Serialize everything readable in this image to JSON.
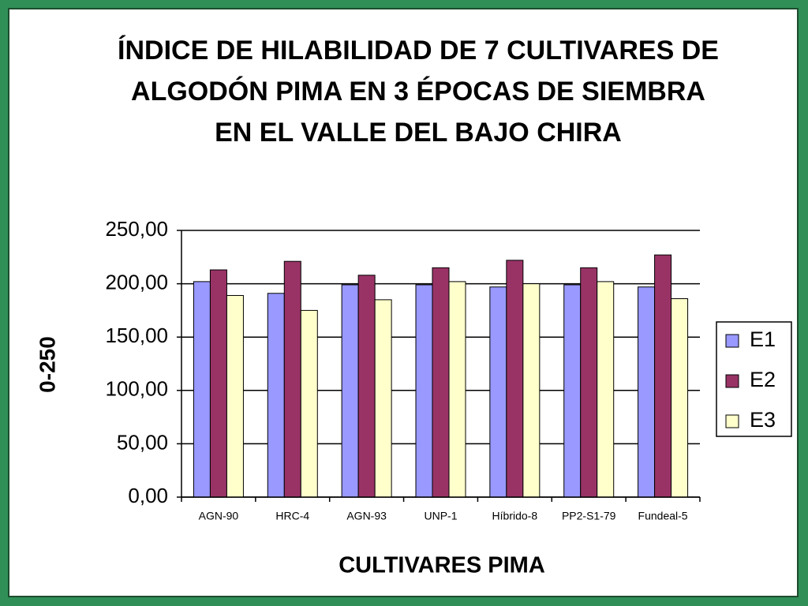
{
  "chart_data": {
    "type": "bar",
    "title": "ÍNDICE DE HILABILIDAD DE 7 CULTIVARES DE ALGODÓN PIMA EN 3 ÉPOCAS DE SIEMBRA EN EL VALLE DEL BAJO CHIRA",
    "x_label": "CULTIVARES  PIMA",
    "y_label": "0-250",
    "categories": [
      "AGN-90",
      "HRC-4",
      "AGN-93",
      "UNP-1",
      "Híbrido-8",
      "PP2-S1-79",
      "Fundeal-5"
    ],
    "series": [
      {
        "name": "E1",
        "color": "#9999ff",
        "values": [
          202,
          191,
          199,
          199,
          197,
          199,
          197
        ]
      },
      {
        "name": "E2",
        "color": "#993366",
        "values": [
          213,
          221,
          208,
          215,
          222,
          215,
          227
        ]
      },
      {
        "name": "E3",
        "color": "#ffffcc",
        "values": [
          189,
          175,
          185,
          202,
          200,
          202,
          186
        ]
      }
    ],
    "ylim": [
      0,
      250
    ],
    "yticks": [
      {
        "value": 0,
        "label": "0,00"
      },
      {
        "value": 50,
        "label": "50,00"
      },
      {
        "value": 100,
        "label": "100,00"
      },
      {
        "value": 150,
        "label": "150,00"
      },
      {
        "value": 200,
        "label": "200,00"
      },
      {
        "value": 250,
        "label": "250,00"
      }
    ],
    "grid": true,
    "legend": "right"
  }
}
